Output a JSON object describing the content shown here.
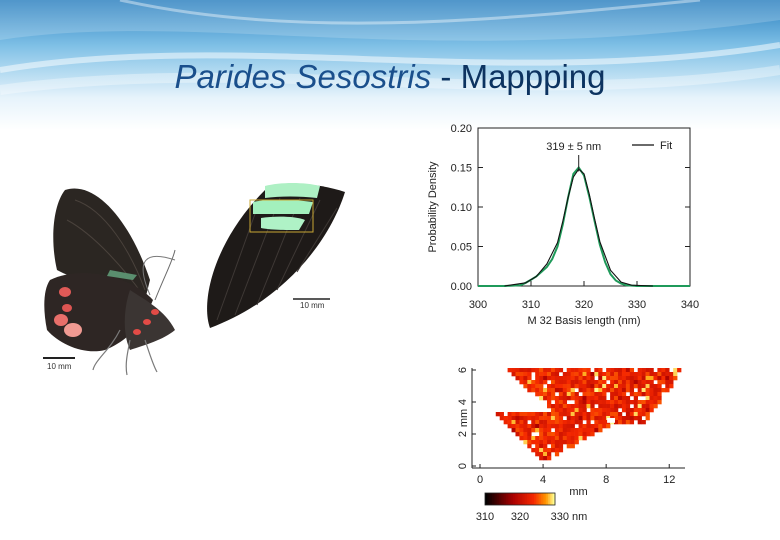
{
  "slide": {
    "title_italic": "Parides Sesostris",
    "title_rest": " - Mappping"
  },
  "photos": {
    "scale_bar_left": "10 mm",
    "scale_bar_right": "10 mm"
  },
  "chart_data": [
    {
      "type": "line",
      "title": "",
      "xlabel": "M 32 Basis length (nm)",
      "ylabel": "Probability Density",
      "xlim": [
        300,
        340
      ],
      "ylim": [
        0,
        0.2
      ],
      "xticks": [
        "300",
        "310",
        "320",
        "330",
        "340"
      ],
      "yticks": [
        "0.00",
        "0.05",
        "0.10",
        "0.15",
        "0.20"
      ],
      "annotation": "319 ± 5 nm",
      "legend": {
        "label": "Fit",
        "position": "top-right"
      },
      "series": [
        {
          "color": "#1f9a5a",
          "x": [
            300,
            305,
            308,
            309,
            310,
            311,
            312,
            313,
            314,
            315,
            316,
            317,
            318,
            319,
            320,
            321,
            322,
            323,
            324,
            325,
            326,
            327,
            328,
            330,
            335,
            340
          ],
          "y": [
            0,
            0,
            0.001,
            0.004,
            0.008,
            0.012,
            0.018,
            0.024,
            0.034,
            0.05,
            0.078,
            0.112,
            0.142,
            0.15,
            0.14,
            0.113,
            0.082,
            0.052,
            0.03,
            0.015,
            0.007,
            0.003,
            0.001,
            0,
            0,
            0
          ]
        },
        {
          "name": "Fit",
          "color": "#111111",
          "x": [
            305,
            309,
            311,
            313,
            315,
            316,
            317,
            318,
            319,
            320,
            321,
            322,
            323,
            325,
            327,
            329,
            333
          ],
          "y": [
            0,
            0.004,
            0.012,
            0.028,
            0.055,
            0.082,
            0.112,
            0.138,
            0.148,
            0.142,
            0.116,
            0.085,
            0.056,
            0.02,
            0.005,
            0.001,
            0
          ]
        }
      ]
    },
    {
      "type": "heatmap",
      "title": "",
      "xlabel": "mm",
      "ylabel": "mm",
      "xlim": [
        0,
        13
      ],
      "ylim": [
        0,
        6
      ],
      "xticks": [
        "0",
        "4",
        "8",
        "12"
      ],
      "yticks": [
        "0",
        "2",
        "4",
        "6"
      ],
      "colorbar": {
        "ticks": [
          "310",
          "320",
          "330 nm"
        ],
        "range": [
          310,
          330
        ]
      }
    }
  ]
}
